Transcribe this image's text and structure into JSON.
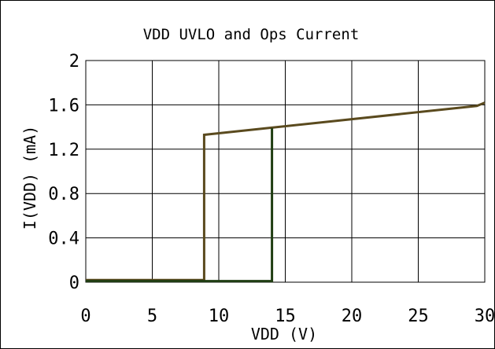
{
  "chart_data": {
    "type": "line",
    "title": "VDD UVLO and Ops Current",
    "xlabel": "VDD (V)",
    "ylabel": "I(VDD) (mA)",
    "xlim": [
      0,
      30
    ],
    "ylim": [
      0,
      2
    ],
    "xticks": [
      0,
      5,
      10,
      15,
      20,
      25,
      30
    ],
    "yticks": [
      0,
      0.4,
      0.8,
      1.2,
      1.6,
      2
    ],
    "ytick_labels": [
      "0",
      "0.4",
      "0.8",
      "1.2",
      "1.6",
      "2"
    ],
    "grid": true,
    "series": [
      {
        "color": "#5a4a1e",
        "x": [
          0,
          8.9,
          8.9,
          29.4,
          30
        ],
        "y": [
          0.02,
          0.02,
          1.33,
          1.59,
          1.62
        ]
      },
      {
        "color": "#1f3d12",
        "x": [
          0,
          14.0,
          14.0
        ],
        "y": [
          0.01,
          0.01,
          1.39
        ]
      }
    ]
  }
}
